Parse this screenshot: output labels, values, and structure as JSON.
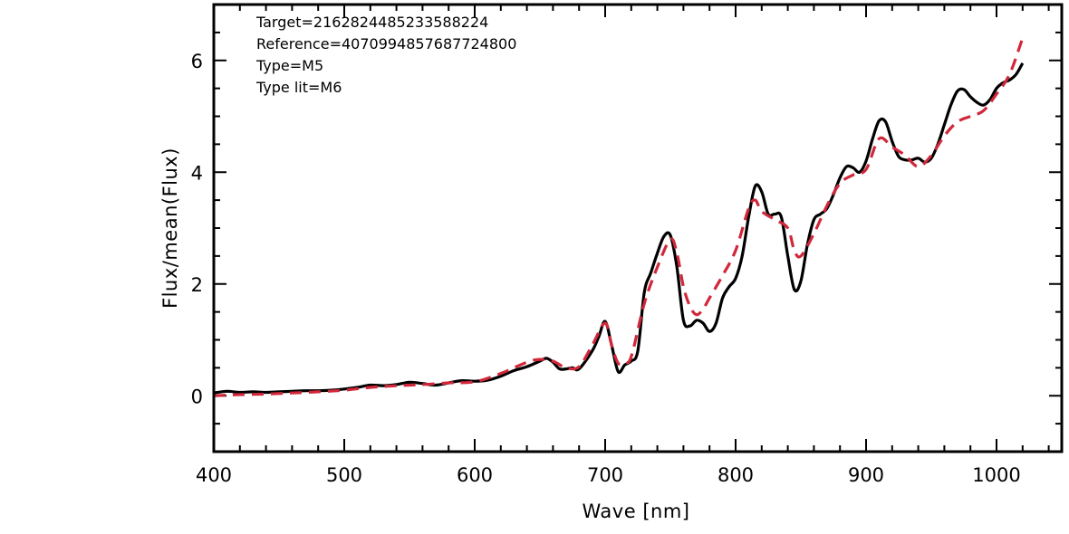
{
  "chart_data": {
    "type": "line",
    "title": "",
    "xlabel": "Wave [nm]",
    "ylabel": "Flux/mean(Flux)",
    "xlim": [
      400,
      1050
    ],
    "ylim": [
      -1,
      7
    ],
    "xticks": [
      400,
      500,
      600,
      700,
      800,
      900,
      1000
    ],
    "yticks": [
      0,
      2,
      4,
      6
    ],
    "grid": false,
    "legend": "none",
    "annotations": [
      "Target=2162824485233588224",
      "Reference=4070994857687724800",
      "Type=M5",
      "Type lit=M6"
    ],
    "series": [
      {
        "color": "#000000",
        "style": "solid",
        "x": [
          400,
          410,
          420,
          430,
          440,
          450,
          460,
          470,
          480,
          490,
          500,
          510,
          520,
          530,
          540,
          550,
          560,
          570,
          580,
          590,
          600,
          610,
          620,
          630,
          640,
          650,
          655,
          660,
          665,
          670,
          675,
          680,
          690,
          695,
          700,
          705,
          710,
          715,
          720,
          725,
          730,
          735,
          740,
          745,
          750,
          755,
          760,
          765,
          770,
          775,
          780,
          785,
          790,
          795,
          800,
          805,
          810,
          815,
          820,
          825,
          830,
          835,
          840,
          845,
          850,
          855,
          860,
          865,
          870,
          875,
          880,
          885,
          890,
          895,
          900,
          905,
          910,
          915,
          920,
          925,
          930,
          935,
          940,
          945,
          950,
          955,
          960,
          965,
          970,
          975,
          980,
          985,
          990,
          995,
          1000,
          1005,
          1010,
          1015,
          1020
        ],
        "y": [
          0.05,
          0.08,
          0.06,
          0.07,
          0.06,
          0.07,
          0.08,
          0.09,
          0.09,
          0.1,
          0.12,
          0.15,
          0.19,
          0.18,
          0.2,
          0.24,
          0.22,
          0.19,
          0.23,
          0.27,
          0.26,
          0.28,
          0.35,
          0.45,
          0.52,
          0.62,
          0.67,
          0.6,
          0.48,
          0.48,
          0.5,
          0.48,
          0.8,
          1.05,
          1.33,
          0.9,
          0.43,
          0.55,
          0.62,
          0.8,
          1.85,
          2.2,
          2.55,
          2.85,
          2.87,
          2.3,
          1.35,
          1.25,
          1.35,
          1.3,
          1.15,
          1.3,
          1.75,
          1.95,
          2.1,
          2.5,
          3.2,
          3.75,
          3.65,
          3.25,
          3.25,
          3.2,
          2.5,
          1.9,
          2.05,
          2.7,
          3.15,
          3.25,
          3.35,
          3.6,
          3.9,
          4.1,
          4.08,
          4.0,
          4.2,
          4.6,
          4.92,
          4.9,
          4.55,
          4.28,
          4.22,
          4.22,
          4.25,
          4.18,
          4.25,
          4.5,
          4.85,
          5.2,
          5.45,
          5.48,
          5.35,
          5.25,
          5.2,
          5.3,
          5.5,
          5.6,
          5.65,
          5.75,
          5.95
        ]
      },
      {
        "color": "#d0283a",
        "style": "dashed",
        "x": [
          400,
          420,
          440,
          460,
          480,
          500,
          520,
          540,
          560,
          580,
          600,
          620,
          640,
          650,
          660,
          670,
          680,
          690,
          700,
          705,
          710,
          715,
          720,
          730,
          740,
          750,
          755,
          760,
          765,
          770,
          775,
          780,
          790,
          800,
          810,
          815,
          820,
          830,
          840,
          845,
          850,
          860,
          870,
          880,
          890,
          900,
          910,
          920,
          930,
          940,
          950,
          960,
          970,
          980,
          990,
          1000,
          1010,
          1020
        ],
        "y": [
          0.0,
          0.02,
          0.03,
          0.05,
          0.07,
          0.1,
          0.15,
          0.18,
          0.2,
          0.23,
          0.25,
          0.4,
          0.6,
          0.65,
          0.62,
          0.5,
          0.52,
          0.9,
          1.3,
          0.9,
          0.58,
          0.6,
          0.7,
          1.65,
          2.3,
          2.8,
          2.55,
          1.95,
          1.6,
          1.45,
          1.55,
          1.75,
          2.15,
          2.6,
          3.35,
          3.5,
          3.3,
          3.15,
          3.0,
          2.6,
          2.5,
          2.9,
          3.4,
          3.8,
          3.95,
          4.05,
          4.6,
          4.45,
          4.3,
          4.1,
          4.3,
          4.65,
          4.9,
          5.0,
          5.1,
          5.4,
          5.75,
          6.4
        ]
      }
    ]
  }
}
